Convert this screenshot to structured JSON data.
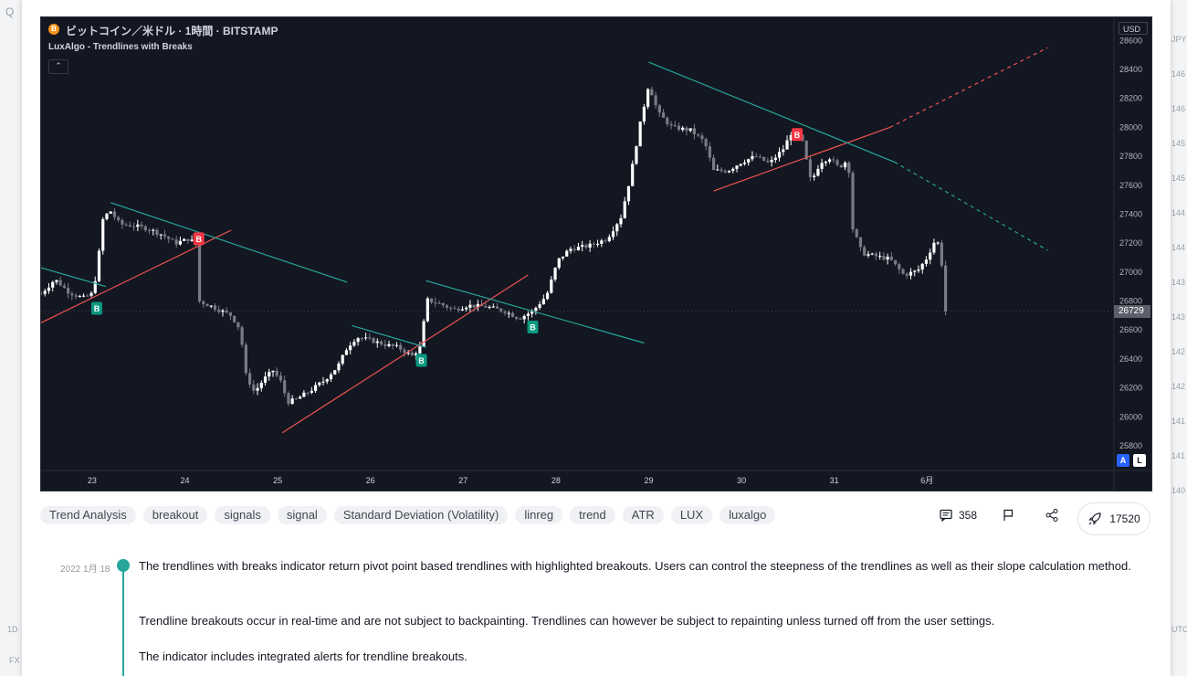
{
  "background": {
    "left_texts": [
      "Q",
      "1D",
      "FX"
    ],
    "right_texts": [
      "JPY",
      "146",
      "146",
      "145",
      "145",
      "144",
      "144",
      "143",
      "143",
      "142",
      "142",
      "141",
      "141",
      "140",
      "UTC"
    ]
  },
  "chart": {
    "title": "ビットコイン／米ドル · 1時間 · BITSTAMP",
    "coin_symbol": "B",
    "indicator": "LuxAlgo - Trendlines with Breaks",
    "collapse_icon": "chevron-up-icon",
    "currency": "USD",
    "current_price": "26729",
    "auto_label": "A",
    "log_label": "L",
    "colors": {
      "background": "#131722",
      "bull_candle": "#ffffff",
      "bear_candle": "#787b86",
      "support_line": "#ef5350",
      "resistance_line": "#26a69a",
      "break_up_badge": "#089981",
      "break_down_badge": "#f23645"
    }
  },
  "chart_data": {
    "type": "candlestick",
    "title": "ビットコイン／米ドル · 1時間 · BITSTAMP",
    "y_unit": "USD",
    "ylim": [
      25700,
      28900
    ],
    "y_ticks": [
      25800,
      26000,
      26200,
      26400,
      26600,
      26800,
      27000,
      27200,
      27400,
      27600,
      27800,
      28000,
      28200,
      28400,
      28600
    ],
    "x_ticks": [
      "23",
      "24",
      "25",
      "26",
      "27",
      "28",
      "29",
      "30",
      "31",
      "6月"
    ],
    "x_range_days": [
      22.45,
      33.3
    ],
    "close_path": [
      [
        22.45,
        26850
      ],
      [
        22.6,
        26950
      ],
      [
        22.75,
        26860
      ],
      [
        22.9,
        26820
      ],
      [
        23.0,
        26850
      ],
      [
        23.05,
        27000
      ],
      [
        23.12,
        27380
      ],
      [
        23.2,
        27420
      ],
      [
        23.3,
        27330
      ],
      [
        23.45,
        27320
      ],
      [
        23.6,
        27300
      ],
      [
        23.75,
        27260
      ],
      [
        23.9,
        27200
      ],
      [
        24.05,
        27230
      ],
      [
        24.13,
        27180
      ],
      [
        24.15,
        26800
      ],
      [
        24.3,
        26760
      ],
      [
        24.5,
        26700
      ],
      [
        24.6,
        26600
      ],
      [
        24.65,
        26300
      ],
      [
        24.75,
        26170
      ],
      [
        24.85,
        26260
      ],
      [
        24.95,
        26320
      ],
      [
        25.05,
        26230
      ],
      [
        25.1,
        26100
      ],
      [
        25.2,
        26120
      ],
      [
        25.35,
        26180
      ],
      [
        25.5,
        26250
      ],
      [
        25.65,
        26350
      ],
      [
        25.75,
        26480
      ],
      [
        25.85,
        26550
      ],
      [
        26.0,
        26530
      ],
      [
        26.15,
        26500
      ],
      [
        26.3,
        26480
      ],
      [
        26.45,
        26420
      ],
      [
        26.55,
        26490
      ],
      [
        26.6,
        26810
      ],
      [
        26.75,
        26780
      ],
      [
        26.9,
        26740
      ],
      [
        27.05,
        26770
      ],
      [
        27.25,
        26760
      ],
      [
        27.45,
        26730
      ],
      [
        27.6,
        26680
      ],
      [
        27.75,
        26730
      ],
      [
        27.9,
        26840
      ],
      [
        28.02,
        27080
      ],
      [
        28.15,
        27160
      ],
      [
        28.35,
        27180
      ],
      [
        28.55,
        27230
      ],
      [
        28.7,
        27380
      ],
      [
        28.8,
        27650
      ],
      [
        28.9,
        28000
      ],
      [
        29.0,
        28300
      ],
      [
        29.1,
        28100
      ],
      [
        29.25,
        28000
      ],
      [
        29.45,
        27980
      ],
      [
        29.6,
        27900
      ],
      [
        29.7,
        27700
      ],
      [
        29.85,
        27700
      ],
      [
        30.0,
        27760
      ],
      [
        30.15,
        27800
      ],
      [
        30.3,
        27750
      ],
      [
        30.45,
        27850
      ],
      [
        30.55,
        27980
      ],
      [
        30.65,
        27920
      ],
      [
        30.75,
        27620
      ],
      [
        30.85,
        27760
      ],
      [
        30.95,
        27790
      ],
      [
        31.05,
        27720
      ],
      [
        31.15,
        27780
      ],
      [
        31.2,
        27300
      ],
      [
        31.3,
        27130
      ],
      [
        31.45,
        27110
      ],
      [
        31.6,
        27090
      ],
      [
        31.75,
        26980
      ],
      [
        31.9,
        27010
      ],
      [
        32.0,
        27100
      ],
      [
        32.1,
        27240
      ],
      [
        32.15,
        27120
      ],
      [
        32.2,
        26729
      ]
    ],
    "support_trendlines": [
      {
        "from": [
          22.45,
          26650
        ],
        "to": [
          24.5,
          27290
        ],
        "style": "solid"
      },
      {
        "from": [
          25.05,
          25890
        ],
        "to": [
          27.7,
          26980
        ],
        "style": "solid"
      },
      {
        "from": [
          29.7,
          27560
        ],
        "to": [
          31.6,
          28000
        ],
        "style": "solid"
      },
      {
        "from": [
          31.6,
          28000
        ],
        "to": [
          33.3,
          28550
        ],
        "style": "dashed"
      }
    ],
    "resistance_trendlines": [
      {
        "from": [
          22.45,
          27030
        ],
        "to": [
          23.15,
          26900
        ],
        "style": "solid"
      },
      {
        "from": [
          23.2,
          27480
        ],
        "to": [
          25.75,
          26930
        ],
        "style": "solid"
      },
      {
        "from": [
          25.8,
          26630
        ],
        "to": [
          26.6,
          26480
        ],
        "style": "solid"
      },
      {
        "from": [
          26.6,
          26940
        ],
        "to": [
          28.95,
          26510
        ],
        "style": "solid"
      },
      {
        "from": [
          29.0,
          28450
        ],
        "to": [
          31.65,
          27760
        ],
        "style": "solid"
      },
      {
        "from": [
          31.65,
          27760
        ],
        "to": [
          33.3,
          27150
        ],
        "style": "dashed"
      }
    ],
    "break_labels": [
      {
        "x": 23.05,
        "y": 26750,
        "label": "B",
        "kind": "up"
      },
      {
        "x": 24.15,
        "y": 27230,
        "label": "B",
        "kind": "down"
      },
      {
        "x": 26.55,
        "y": 26390,
        "label": "B",
        "kind": "up"
      },
      {
        "x": 27.75,
        "y": 26620,
        "label": "B",
        "kind": "up"
      },
      {
        "x": 30.6,
        "y": 27950,
        "label": "B",
        "kind": "down"
      }
    ]
  },
  "tags": [
    "Trend Analysis",
    "breakout",
    "signals",
    "signal",
    "Standard Deviation (Volatility)",
    "linreg",
    "trend",
    "ATR",
    "LUX",
    "luxalgo"
  ],
  "actions": {
    "comments_count": "358",
    "comment_icon": "comment-icon",
    "flag_icon": "flag-icon",
    "share_icon": "share-icon",
    "boost_icon": "rocket-icon",
    "boosts_count": "17520"
  },
  "description": {
    "date": "2022 1月 18",
    "paragraphs": [
      "The trendlines with breaks indicator return pivot point based trendlines with highlighted breakouts. Users can control the steepness of the trendlines as well as their slope calculation method.",
      "Trendline breakouts occur in real-time and are not subject to backpainting. Trendlines can however be subject to repainting unless turned off from the user settings.",
      "The indicator includes integrated alerts for trendline breakouts."
    ]
  }
}
